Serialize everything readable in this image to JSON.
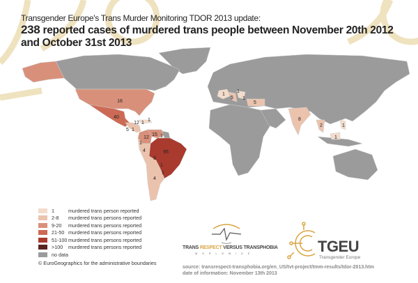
{
  "header": {
    "line1": "Transgender Europe's Trans Murder Monitoring TDOR 2013 update:",
    "count": "238",
    "line2": " reported cases of murdered trans people between November 20th 2012 and October 31st 2013"
  },
  "colors": {
    "c1": "#f3dccb",
    "c2_8": "#ebc3ad",
    "c9_20": "#d9907a",
    "c21_50": "#cc6a55",
    "c51_100": "#a93a2e",
    "c100": "#5a2320",
    "nodata": "#9b9b9b",
    "accent": "#e8d29e"
  },
  "map_labels": [
    "16",
    "40",
    "5",
    "1",
    "12",
    "1",
    "1",
    "12",
    "15",
    "1",
    "1",
    "4",
    "95",
    "3",
    "1",
    "1",
    "4",
    "1",
    "5",
    "1",
    "1",
    "5",
    "8",
    "2",
    "1",
    "1"
  ],
  "legend": [
    {
      "range": "1",
      "text": "murdered trans person reported",
      "color": "#f3dccb"
    },
    {
      "range": "2-8",
      "text": "murdered trans persons reported",
      "color": "#ebc3ad"
    },
    {
      "range": "9-20",
      "text": "murdered trans persons reported",
      "color": "#d9907a"
    },
    {
      "range": "21-50",
      "text": "murdered trans persons reported",
      "color": "#cc6a55"
    },
    {
      "range": "51-100",
      "text": "murdered trans persons reported",
      "color": "#a93a2e"
    },
    {
      "range": ">100",
      "text": "murdered trans persons reported",
      "color": "#5a2320"
    },
    {
      "range": "no data",
      "text": "",
      "color": "#9b9b9b"
    }
  ],
  "copyright": "© EuroGeographics for the administrative boundaries",
  "logos": {
    "tvt_a": "TRANS ",
    "tvt_b": "RESPECT",
    "tvt_c": " VERSUS TRANSPHOBIA",
    "tvt_sub": "WORLDWIDE",
    "tgeu": "TGEU",
    "tgeu_sub": "Transgender Europe"
  },
  "source": {
    "line1": "source: transrespect-transphobia.org/en_US/tvt-project/tmm-results/tdor-2013.htm",
    "line2": "date of information: November 13th 2013"
  }
}
